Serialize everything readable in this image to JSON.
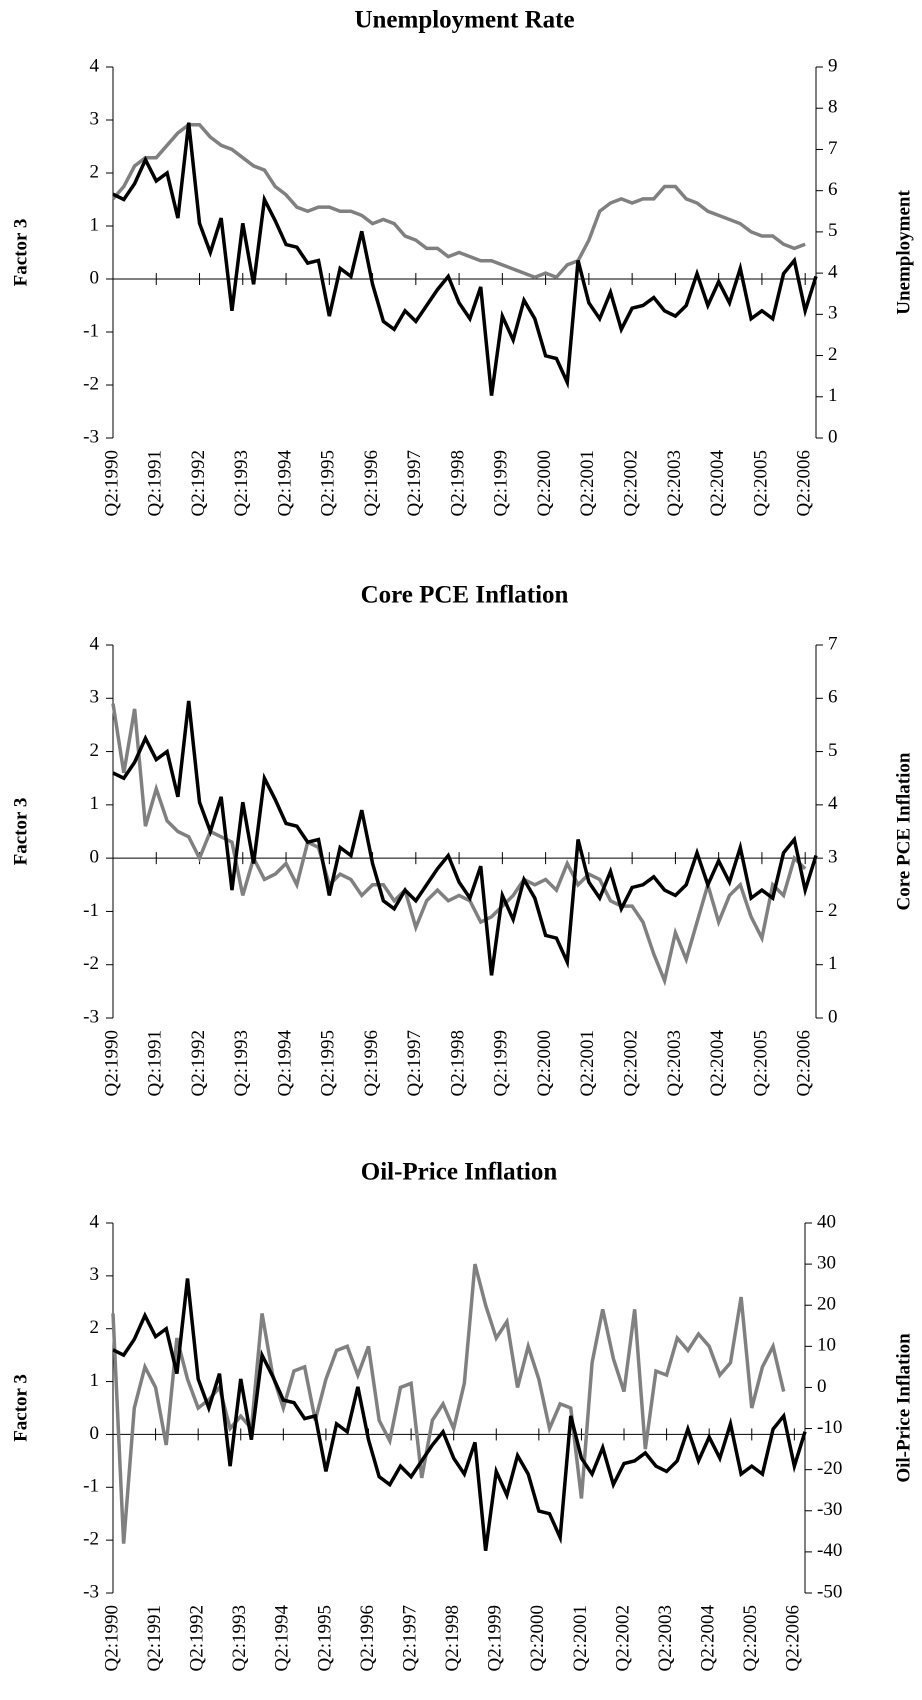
{
  "chart_data": [
    {
      "type": "line",
      "title": "Unemployment Rate",
      "y_label": "Factor 3",
      "y2_label": "Unemployment",
      "categories": [
        "Q2:1990",
        null,
        null,
        null,
        "Q2:1991",
        null,
        null,
        null,
        "Q2:1992",
        null,
        null,
        null,
        "Q2:1993",
        null,
        null,
        null,
        "Q2:1994",
        null,
        null,
        null,
        "Q2:1995",
        null,
        null,
        null,
        "Q2:1996",
        null,
        null,
        null,
        "Q2:1997",
        null,
        null,
        null,
        "Q2:1998",
        null,
        null,
        null,
        "Q2:1999",
        null,
        null,
        null,
        "Q2:2000",
        null,
        null,
        null,
        "Q2:2001",
        null,
        null,
        null,
        "Q2:2002",
        null,
        null,
        null,
        "Q2:2003",
        null,
        null,
        null,
        "Q2:2004",
        null,
        null,
        null,
        "Q2:2005",
        null,
        null,
        null,
        "Q2:2006",
        null
      ],
      "ylim": [
        -3,
        4
      ],
      "yticks": [
        -3,
        -2,
        -1,
        0,
        1,
        2,
        3,
        4
      ],
      "y2lim": [
        0,
        9
      ],
      "y2ticks": [
        0,
        1,
        2,
        3,
        4,
        5,
        6,
        7,
        8,
        9
      ],
      "series": [
        {
          "color": "#000000",
          "values": [
            1.6,
            1.5,
            1.8,
            2.25,
            1.85,
            2.0,
            1.15,
            2.95,
            1.05,
            0.5,
            1.15,
            -0.6,
            1.05,
            -0.1,
            1.5,
            1.1,
            0.65,
            0.6,
            0.3,
            0.35,
            -0.7,
            0.2,
            0.05,
            0.9,
            -0.1,
            -0.8,
            -0.95,
            -0.6,
            -0.8,
            -0.5,
            -0.2,
            0.05,
            -0.45,
            -0.75,
            -0.15,
            -2.2,
            -0.7,
            -1.15,
            -0.4,
            -0.75,
            -1.45,
            -1.5,
            -1.95,
            0.35,
            -0.45,
            -0.75,
            -0.25,
            -0.95,
            -0.55,
            -0.5,
            -0.35,
            -0.6,
            -0.7,
            -0.5,
            0.1,
            -0.5,
            -0.05,
            -0.45,
            0.2,
            -0.75,
            -0.6,
            -0.75,
            0.1,
            0.35,
            -0.6,
            0.05
          ]
        },
        {
          "color": "#808080",
          "axis": "y2",
          "values": [
            5.8,
            6.1,
            6.6,
            6.8,
            6.8,
            7.1,
            7.4,
            7.6,
            7.6,
            7.3,
            7.1,
            7.0,
            6.8,
            6.6,
            6.5,
            6.1,
            5.9,
            5.6,
            5.5,
            5.6,
            5.6,
            5.5,
            5.5,
            5.4,
            5.2,
            5.3,
            5.2,
            4.9,
            4.8,
            4.6,
            4.6,
            4.4,
            4.5,
            4.4,
            4.3,
            4.3,
            4.2,
            4.1,
            4.0,
            3.9,
            4.0,
            3.9,
            4.2,
            4.3,
            4.8,
            5.5,
            5.7,
            5.8,
            5.7,
            5.8,
            5.8,
            6.1,
            6.1,
            5.8,
            5.7,
            5.5,
            5.4,
            5.3,
            5.2,
            5.0,
            4.9,
            4.9,
            4.7,
            4.6,
            4.7,
            null
          ]
        }
      ]
    },
    {
      "type": "line",
      "title": "Core PCE Inflation",
      "y_label": "Factor 3",
      "y2_label": "Core PCE Inflation",
      "categories": [
        "Q2:1990",
        null,
        null,
        null,
        "Q2:1991",
        null,
        null,
        null,
        "Q2:1992",
        null,
        null,
        null,
        "Q2:1993",
        null,
        null,
        null,
        "Q2:1994",
        null,
        null,
        null,
        "Q2:1995",
        null,
        null,
        null,
        "Q2:1996",
        null,
        null,
        null,
        "Q2:1997",
        null,
        null,
        null,
        "Q2:1998",
        null,
        null,
        null,
        "Q2:1999",
        null,
        null,
        null,
        "Q2:2000",
        null,
        null,
        null,
        "Q2:2001",
        null,
        null,
        null,
        "Q2:2002",
        null,
        null,
        null,
        "Q2:2003",
        null,
        null,
        null,
        "Q2:2004",
        null,
        null,
        null,
        "Q2:2005",
        null,
        null,
        null,
        "Q2:2006",
        null
      ],
      "ylim": [
        -3,
        4
      ],
      "yticks": [
        -3,
        -2,
        -1,
        0,
        1,
        2,
        3,
        4
      ],
      "y2lim": [
        0,
        7
      ],
      "y2ticks": [
        0,
        1,
        2,
        3,
        4,
        5,
        6,
        7
      ],
      "series": [
        {
          "color": "#000000",
          "values": [
            1.6,
            1.5,
            1.8,
            2.25,
            1.85,
            2.0,
            1.15,
            2.95,
            1.05,
            0.5,
            1.15,
            -0.6,
            1.05,
            -0.1,
            1.5,
            1.1,
            0.65,
            0.6,
            0.3,
            0.35,
            -0.7,
            0.2,
            0.05,
            0.9,
            -0.1,
            -0.8,
            -0.95,
            -0.6,
            -0.8,
            -0.5,
            -0.2,
            0.05,
            -0.45,
            -0.75,
            -0.15,
            -2.2,
            -0.7,
            -1.15,
            -0.4,
            -0.75,
            -1.45,
            -1.5,
            -1.95,
            0.35,
            -0.45,
            -0.75,
            -0.25,
            -0.95,
            -0.55,
            -0.5,
            -0.35,
            -0.6,
            -0.7,
            -0.5,
            0.1,
            -0.5,
            -0.05,
            -0.45,
            0.2,
            -0.75,
            -0.6,
            -0.75,
            0.1,
            0.35,
            -0.6,
            0.05
          ]
        },
        {
          "color": "#808080",
          "axis": "y2",
          "values": [
            5.9,
            4.6,
            5.8,
            3.6,
            4.3,
            3.7,
            3.5,
            3.4,
            3.0,
            3.5,
            3.4,
            3.3,
            2.3,
            3.0,
            2.6,
            2.7,
            2.9,
            2.5,
            3.3,
            3.2,
            2.5,
            2.7,
            2.6,
            2.3,
            2.5,
            2.5,
            2.2,
            2.4,
            1.7,
            2.2,
            2.4,
            2.2,
            2.3,
            2.2,
            1.8,
            1.9,
            2.1,
            2.3,
            2.6,
            2.5,
            2.6,
            2.4,
            2.9,
            2.5,
            2.7,
            2.6,
            2.2,
            2.1,
            2.1,
            1.8,
            1.2,
            0.7,
            1.6,
            1.1,
            1.8,
            2.5,
            1.8,
            2.3,
            2.5,
            1.9,
            1.5,
            2.5,
            2.3,
            3.0,
            2.8,
            null
          ]
        }
      ]
    },
    {
      "type": "line",
      "title": "Oil-Price Inflation",
      "y_label": "Factor 3",
      "y2_label": "Oil-Price Inflation",
      "categories": [
        "Q2:1990",
        null,
        null,
        null,
        "Q2:1991",
        null,
        null,
        null,
        "Q2:1992",
        null,
        null,
        null,
        "Q2:1993",
        null,
        null,
        null,
        "Q2:1994",
        null,
        null,
        null,
        "Q2:1995",
        null,
        null,
        null,
        "Q2:1996",
        null,
        null,
        null,
        "Q2:1997",
        null,
        null,
        null,
        "Q2:1998",
        null,
        null,
        null,
        "Q2:1999",
        null,
        null,
        null,
        "Q2:2000",
        null,
        null,
        null,
        "Q2:2001",
        null,
        null,
        null,
        "Q2:2002",
        null,
        null,
        null,
        "Q2:2003",
        null,
        null,
        null,
        "Q2:2004",
        null,
        null,
        null,
        "Q2:2005",
        null,
        null,
        null,
        "Q2:2006",
        null
      ],
      "ylim": [
        -3,
        4
      ],
      "yticks": [
        -3,
        -2,
        -1,
        0,
        1,
        2,
        3,
        4
      ],
      "y2lim": [
        -50,
        40
      ],
      "y2ticks": [
        -50,
        -40,
        -30,
        -20,
        -10,
        0,
        10,
        20,
        30,
        40
      ],
      "series": [
        {
          "color": "#000000",
          "values": [
            1.6,
            1.5,
            1.8,
            2.25,
            1.85,
            2.0,
            1.15,
            2.95,
            1.05,
            0.5,
            1.15,
            -0.6,
            1.05,
            -0.1,
            1.5,
            1.1,
            0.65,
            0.6,
            0.3,
            0.35,
            -0.7,
            0.2,
            0.05,
            0.9,
            -0.1,
            -0.8,
            -0.95,
            -0.6,
            -0.8,
            -0.5,
            -0.2,
            0.05,
            -0.45,
            -0.75,
            -0.15,
            -2.2,
            -0.7,
            -1.15,
            -0.4,
            -0.75,
            -1.45,
            -1.5,
            -1.95,
            0.35,
            -0.45,
            -0.75,
            -0.25,
            -0.95,
            -0.55,
            -0.5,
            -0.35,
            -0.6,
            -0.7,
            -0.5,
            0.1,
            -0.5,
            -0.05,
            -0.45,
            0.2,
            -0.75,
            -0.6,
            -0.75,
            0.1,
            0.35,
            -0.6,
            0.05
          ]
        },
        {
          "color": "#808080",
          "axis": "y2",
          "values": [
            18,
            -38,
            -5,
            5,
            0,
            -14,
            12,
            2,
            -5,
            -3,
            0,
            -10,
            -7,
            -10,
            18,
            3,
            -5,
            4,
            5,
            -8,
            2,
            9,
            10,
            3,
            10,
            -8,
            -13,
            0,
            1,
            -22,
            -8,
            -4,
            -10,
            1,
            30,
            20,
            12,
            16,
            0,
            10,
            2,
            -10,
            -4,
            -5,
            -27,
            6,
            19,
            7,
            -1,
            19,
            -15,
            4,
            3,
            12,
            9,
            13,
            10,
            3,
            6,
            22,
            -5,
            5,
            10,
            -1,
            null,
            null
          ]
        }
      ]
    }
  ]
}
